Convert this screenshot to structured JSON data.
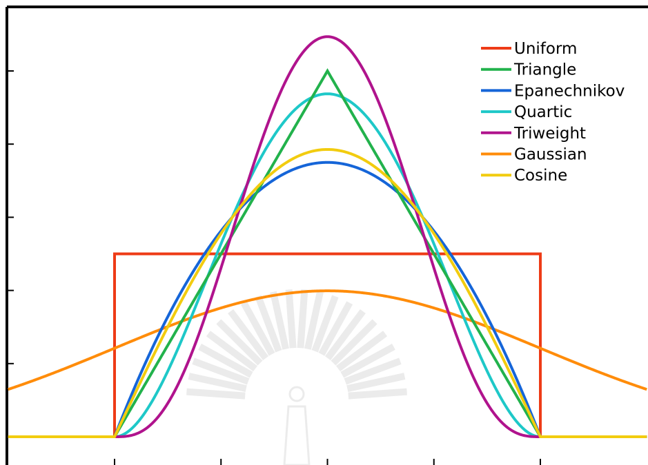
{
  "chart_data": {
    "type": "line",
    "title": "",
    "xlabel": "",
    "ylabel": "",
    "xlim": [
      -1.5,
      1.5
    ],
    "ylim": [
      0,
      1.2
    ],
    "grid": false,
    "legend_position": "top-right",
    "series": [
      {
        "name": "Uniform",
        "color": "#ee3b16",
        "kernel": "uniform"
      },
      {
        "name": "Triangle",
        "color": "#22b24c",
        "kernel": "triangle"
      },
      {
        "name": "Epanechnikov",
        "color": "#1565d8",
        "kernel": "epanechnikov"
      },
      {
        "name": "Quartic",
        "color": "#1ec8c8",
        "kernel": "quartic"
      },
      {
        "name": "Triweight",
        "color": "#b0138d",
        "kernel": "triweight"
      },
      {
        "name": "Gaussian",
        "color": "#ff8c0a",
        "kernel": "gaussian"
      },
      {
        "name": "Cosine",
        "color": "#f2cc0f",
        "kernel": "cosine"
      }
    ],
    "series_draw_order": [
      "Uniform",
      "Gaussian",
      "Epanechnikov",
      "Quartic",
      "Triangle",
      "Triweight",
      "Cosine"
    ]
  },
  "watermark": {
    "name": "university-seal",
    "description_visible": false
  }
}
